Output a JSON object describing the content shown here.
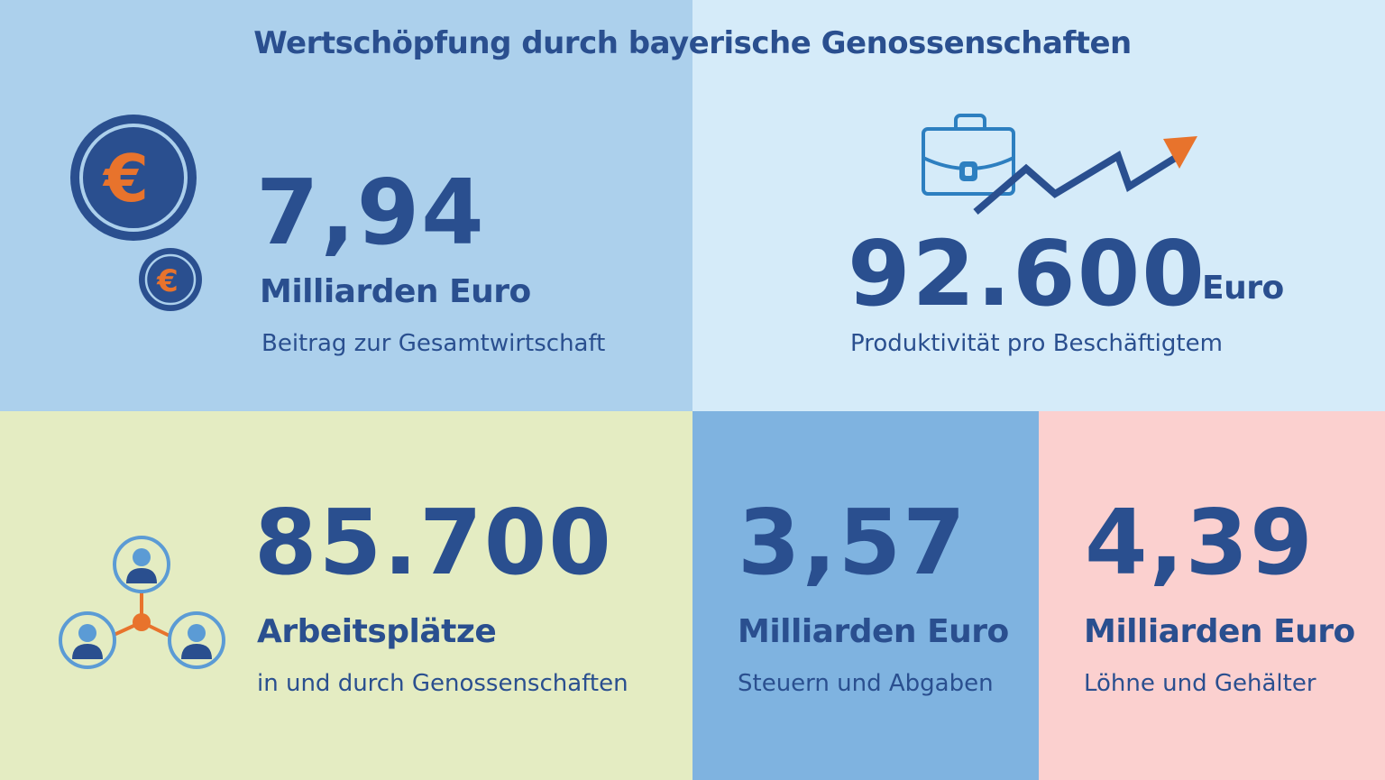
{
  "title": "Wertschöpfung durch bayerische Genossenschaften",
  "colors": {
    "dark_blue": "#2a4f8f",
    "orange": "#e8732c",
    "mid_blue": "#2d7fc0",
    "panel_light_blue": "#acd0ec",
    "panel_pale_blue": "#d5ebf9",
    "panel_green": "#e4ecc2",
    "panel_blue": "#7fb3e0",
    "panel_pink": "#fbd0cf"
  },
  "tiles": {
    "gesamtwirtschaft": {
      "value": "7,94",
      "unit": "Milliarden Euro",
      "description": "Beitrag zur Gesamtwirtschaft",
      "icon": "euro-coins-icon"
    },
    "produktivitaet": {
      "value": "92.600",
      "unit": "Euro",
      "description": "Produktivität pro Beschäftigtem",
      "icon": "briefcase-growth-icon"
    },
    "arbeitsplaetze": {
      "value": "85.700",
      "unit": "Arbeitsplätze",
      "description": "in und durch Genossenschaften",
      "icon": "people-network-icon"
    },
    "steuern": {
      "value": "3,57",
      "unit": "Milliarden Euro",
      "description": "Steuern und Abgaben"
    },
    "loehne": {
      "value": "4,39",
      "unit": "Milliarden Euro",
      "description": "Löhne und Gehälter"
    }
  }
}
